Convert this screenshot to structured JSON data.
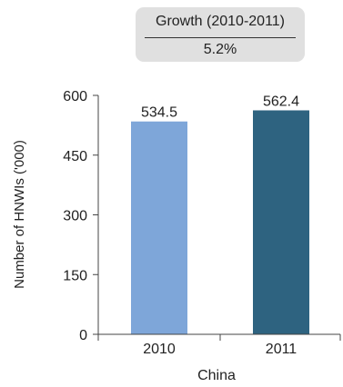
{
  "growth": {
    "label": "Growth (2010-2011)",
    "value": "5.2%"
  },
  "chart_data": {
    "type": "bar",
    "categories": [
      "2010",
      "2011"
    ],
    "values": [
      534.5,
      562.4
    ],
    "value_labels": [
      "534.5",
      "562.4"
    ],
    "colors": [
      "#7ea6d9",
      "#2e6380"
    ],
    "xlabel": "China",
    "ylabel": "Number of HNWIs ('000)",
    "ylim": [
      0,
      600
    ],
    "yticks": [
      0,
      150,
      300,
      450,
      600
    ],
    "grid": false
  }
}
